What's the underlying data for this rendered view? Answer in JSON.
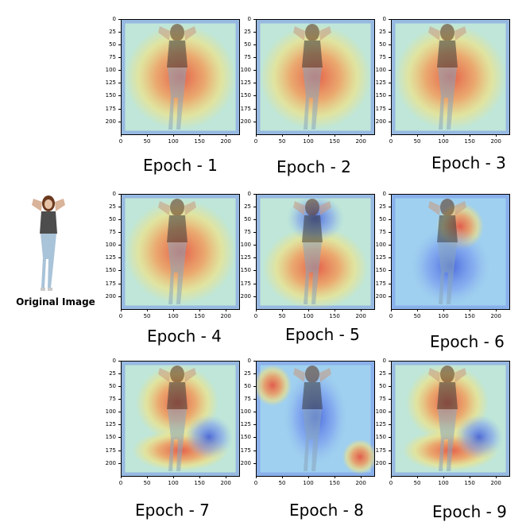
{
  "original": {
    "caption": "Original Image"
  },
  "axes": {
    "y_ticks": [
      "0",
      "25",
      "50",
      "75",
      "100",
      "125",
      "150",
      "175",
      "200"
    ],
    "x_ticks": [
      "0",
      "50",
      "100",
      "150",
      "200"
    ]
  },
  "panels": [
    {
      "label": "Epoch - 1",
      "focus": "body-wide"
    },
    {
      "label": "Epoch - 2",
      "focus": "body-wide"
    },
    {
      "label": "Epoch - 3",
      "focus": "body-wide"
    },
    {
      "label": "Epoch - 4",
      "focus": "body-wide"
    },
    {
      "label": "Epoch - 5",
      "focus": "lower"
    },
    {
      "label": "Epoch - 6",
      "focus": "shoulder"
    },
    {
      "label": "Epoch - 7",
      "focus": "torso"
    },
    {
      "label": "Epoch - 8",
      "focus": "edges"
    },
    {
      "label": "Epoch - 9",
      "focus": "torso"
    }
  ]
}
